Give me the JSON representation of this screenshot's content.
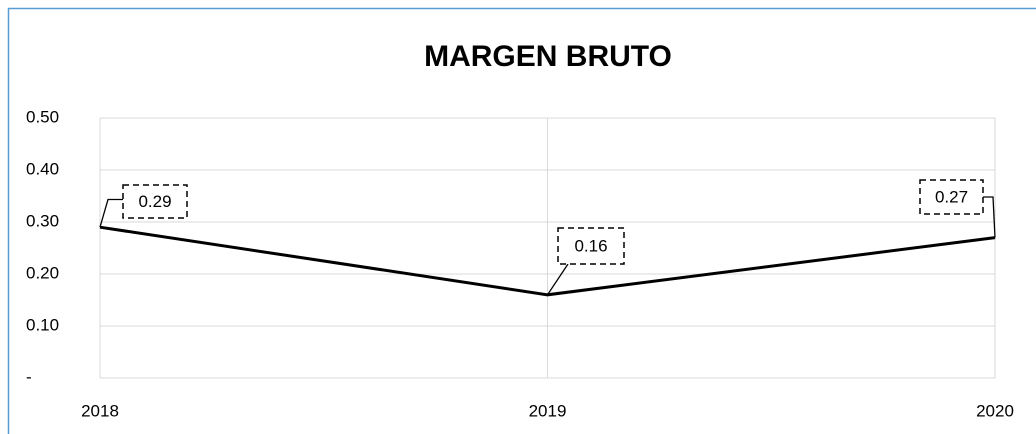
{
  "chart_data": {
    "type": "line",
    "title": "MARGEN BRUTO",
    "categories": [
      "2018",
      "2019",
      "2020"
    ],
    "series": [
      {
        "name": "MARGEN BRUTO",
        "color": "#000000",
        "values": [
          0.29,
          0.16,
          0.27
        ]
      }
    ],
    "ylim": [
      0,
      0.5
    ],
    "yticks": [
      {
        "value": 0,
        "label": "-"
      },
      {
        "value": 0.1,
        "label": "0.10"
      },
      {
        "value": 0.2,
        "label": "0.20"
      },
      {
        "value": 0.3,
        "label": "0.30"
      },
      {
        "value": 0.4,
        "label": "0.40"
      },
      {
        "value": 0.5,
        "label": "0.50"
      }
    ],
    "grid": true
  }
}
